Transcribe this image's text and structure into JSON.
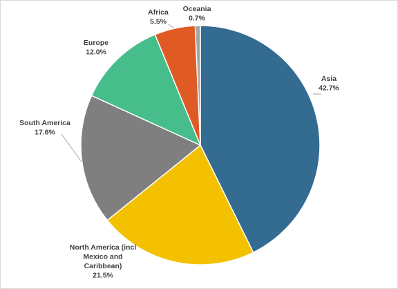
{
  "chart_data": {
    "type": "pie",
    "start_angle_deg": 0,
    "direction": "clockwise",
    "slices": [
      {
        "category": "Asia",
        "value": 42.7,
        "label": "42.7%",
        "color": "#336b91"
      },
      {
        "category": "North America (incl Mexico and Caribbean)",
        "lines": [
          "North America (incl",
          "Mexico and",
          "Caribbean)"
        ],
        "value": 21.5,
        "label": "21.5%",
        "color": "#f3c100"
      },
      {
        "category": "South America",
        "value": 17.6,
        "label": "17.6%",
        "color": "#7f7f7f"
      },
      {
        "category": "Europe",
        "value": 12.0,
        "label": "12.0%",
        "color": "#46bd8b"
      },
      {
        "category": "Africa",
        "value": 5.5,
        "label": "5.5%",
        "color": "#e05a24"
      },
      {
        "category": "Oceania",
        "value": 0.7,
        "label": "0.7%",
        "color": "#a5a5a5"
      }
    ]
  }
}
